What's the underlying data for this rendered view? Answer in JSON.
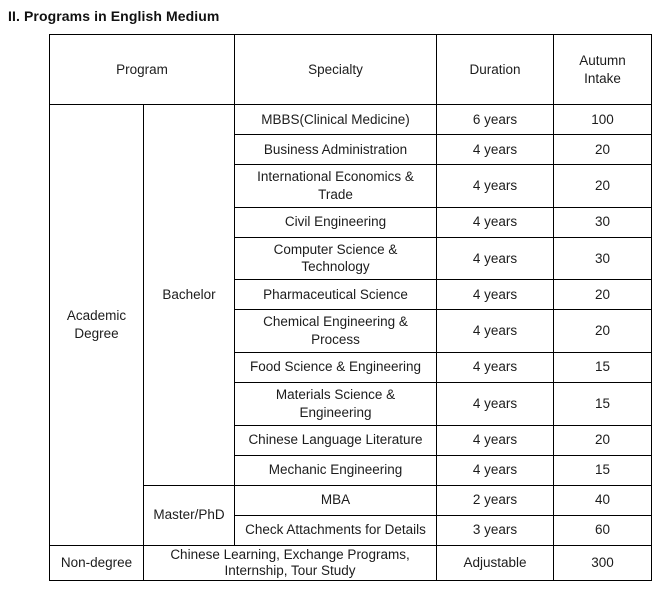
{
  "title": "II. Programs in English Medium",
  "columns": {
    "program": "Program",
    "specialty": "Specialty",
    "duration": "Duration",
    "autumn_intake": "Autumn\nIntake"
  },
  "academic_degree": {
    "label": "Academic\nDegree",
    "bachelor": {
      "label": "Bachelor",
      "rows": [
        {
          "specialty": "MBBS(Clinical Medicine)",
          "duration": "6 years",
          "intake": "100"
        },
        {
          "specialty": "Business Administration",
          "duration": "4 years",
          "intake": "20"
        },
        {
          "specialty": "International Economics &\nTrade",
          "duration": "4 years",
          "intake": "20"
        },
        {
          "specialty": "Civil Engineering",
          "duration": "4 years",
          "intake": "30"
        },
        {
          "specialty": "Computer Science &\nTechnology",
          "duration": "4 years",
          "intake": "30"
        },
        {
          "specialty": "Pharmaceutical Science",
          "duration": "4 years",
          "intake": "20"
        },
        {
          "specialty": "Chemical Engineering &\nProcess",
          "duration": "4 years",
          "intake": "20"
        },
        {
          "specialty": "Food Science & Engineering",
          "duration": "4 years",
          "intake": "15"
        },
        {
          "specialty": "Materials Science &\nEngineering",
          "duration": "4 years",
          "intake": "15"
        },
        {
          "specialty": "Chinese Language Literature",
          "duration": "4 years",
          "intake": "20"
        },
        {
          "specialty": "Mechanic Engineering",
          "duration": "4 years",
          "intake": "15"
        }
      ]
    },
    "master_phd": {
      "label": "Master/PhD",
      "rows": [
        {
          "specialty": "MBA",
          "duration": "2 years",
          "intake": "40"
        },
        {
          "specialty": "Check Attachments for Details",
          "duration": "3 years",
          "intake": "60"
        }
      ]
    }
  },
  "non_degree": {
    "label": "Non-degree",
    "specialty": "Chinese Learning, Exchange Programs,\nInternship, Tour Study",
    "duration": "Adjustable",
    "intake": "300"
  },
  "colors": {
    "text": "#1c1c1c",
    "border": "#000000",
    "background": "#ffffff"
  }
}
